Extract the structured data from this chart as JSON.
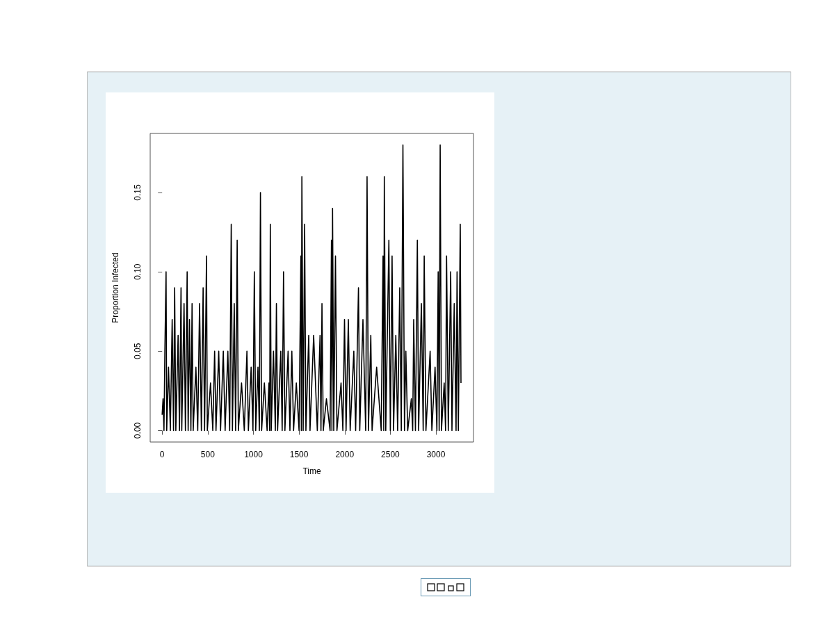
{
  "chart_data": {
    "type": "line",
    "xlabel": "Time",
    "ylabel": "Proportion Infected",
    "color": "#000000",
    "xlim": [
      -131,
      3411
    ],
    "xticks": [
      0,
      500,
      1000,
      1500,
      2000,
      2500,
      3000
    ],
    "ylim": [
      -0.0072,
      0.1872
    ],
    "yticks": [
      {
        "value": 0,
        "label": "0.00"
      },
      {
        "value": 0.05,
        "label": "0.05"
      },
      {
        "value": 0.1,
        "label": "0.10"
      },
      {
        "value": 0.15,
        "label": "0.15"
      }
    ],
    "x": [
      0,
      10,
      20,
      30,
      43,
      50,
      70,
      90,
      110,
      125,
      137,
      150,
      175,
      190,
      207,
      215,
      240,
      255,
      274,
      285,
      300,
      315,
      328,
      340,
      370,
      390,
      410,
      430,
      449,
      465,
      486,
      495,
      530,
      555,
      575,
      590,
      620,
      640,
      670,
      690,
      720,
      740,
      757,
      770,
      790,
      805,
      822,
      835,
      870,
      900,
      929,
      945,
      975,
      995,
      1010,
      1025,
      1050,
      1065,
      1077,
      1090,
      1120,
      1150,
      1170,
      1178,
      1185,
      1195,
      1220,
      1240,
      1252,
      1265,
      1300,
      1315,
      1330,
      1345,
      1380,
      1400,
      1421,
      1440,
      1470,
      1500,
      1520,
      1525,
      1531,
      1545,
      1561,
      1575,
      1606,
      1620,
      1660,
      1700,
      1730,
      1740,
      1751,
      1765,
      1800,
      1840,
      1855,
      1860,
      1867,
      1880,
      1899,
      1915,
      1960,
      1980,
      1998,
      2015,
      2040,
      2060,
      2100,
      2120,
      2151,
      2165,
      2200,
      2230,
      2245,
      2260,
      2286,
      2300,
      2350,
      2400,
      2420,
      2428,
      2434,
      2450,
      2484,
      2500,
      2519,
      2535,
      2560,
      2580,
      2603,
      2620,
      2638,
      2655,
      2670,
      2690,
      2730,
      2745,
      2756,
      2775,
      2796,
      2810,
      2840,
      2860,
      2871,
      2890,
      2936,
      2955,
      2990,
      3010,
      3024,
      3035,
      3046,
      3060,
      3090,
      3105,
      3116,
      3135,
      3161,
      3175,
      3200,
      3220,
      3231,
      3245,
      3266,
      3274
    ],
    "values": [
      0.01,
      0.02,
      0,
      0.05,
      0.1,
      0,
      0.04,
      0,
      0.07,
      0,
      0.09,
      0,
      0.06,
      0,
      0.09,
      0,
      0.08,
      0,
      0.1,
      0,
      0.07,
      0,
      0.08,
      0,
      0.04,
      0,
      0.08,
      0,
      0.09,
      0,
      0.11,
      0,
      0.03,
      0,
      0.05,
      0,
      0.05,
      0,
      0.05,
      0,
      0.05,
      0,
      0.13,
      0,
      0.08,
      0,
      0.12,
      0,
      0.03,
      0,
      0.05,
      0,
      0.04,
      0,
      0.1,
      0,
      0.04,
      0,
      0.15,
      0,
      0.03,
      0,
      0.03,
      0,
      0.13,
      0,
      0.05,
      0,
      0.08,
      0,
      0.05,
      0,
      0.1,
      0,
      0.05,
      0,
      0.05,
      0,
      0.03,
      0,
      0.11,
      0,
      0.16,
      0,
      0.13,
      0,
      0.06,
      0,
      0.06,
      0,
      0.06,
      0,
      0.08,
      0,
      0.02,
      0,
      0.12,
      0,
      0.14,
      0,
      0.11,
      0,
      0.03,
      0,
      0.07,
      0,
      0.07,
      0,
      0.05,
      0,
      0.09,
      0,
      0.07,
      0,
      0.16,
      0,
      0.06,
      0,
      0.04,
      0,
      0.11,
      0,
      0.16,
      0,
      0.12,
      0,
      0.11,
      0,
      0.06,
      0,
      0.09,
      0,
      0.18,
      0,
      0.05,
      0,
      0.02,
      0,
      0.07,
      0,
      0.12,
      0,
      0.08,
      0,
      0.11,
      0,
      0.05,
      0,
      0.04,
      0,
      0.1,
      0,
      0.18,
      0,
      0.03,
      0,
      0.11,
      0,
      0.1,
      0,
      0.08,
      0,
      0.1,
      0,
      0.13,
      0.03
    ]
  }
}
